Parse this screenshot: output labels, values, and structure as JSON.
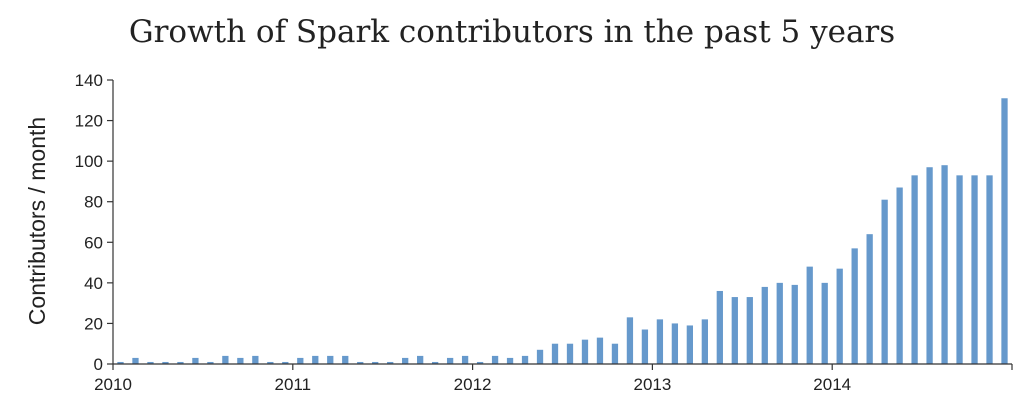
{
  "colors": {
    "bar": "#6699cc",
    "axis": "#333333",
    "text": "#222222"
  },
  "chart_data": {
    "type": "bar",
    "title": "Growth of Spark contributors in the past 5 years",
    "xlabel": "",
    "ylabel": "Contributors / month",
    "ylim": [
      0,
      140
    ],
    "yticks": [
      0,
      20,
      40,
      60,
      80,
      100,
      120,
      140
    ],
    "xticks": [
      {
        "label": "2010",
        "month_index": 0
      },
      {
        "label": "2011",
        "month_index": 12
      },
      {
        "label": "2012",
        "month_index": 24
      },
      {
        "label": "2013",
        "month_index": 36
      },
      {
        "label": "2014",
        "month_index": 48
      }
    ],
    "total_months": 60,
    "grid": false,
    "series": [
      {
        "name": "Contributors / month",
        "values": [
          1,
          3,
          1,
          1,
          1,
          3,
          1,
          4,
          3,
          4,
          1,
          1,
          3,
          4,
          4,
          4,
          1,
          1,
          1,
          3,
          4,
          1,
          3,
          4,
          1,
          4,
          3,
          4,
          7,
          10,
          10,
          12,
          13,
          10,
          23,
          17,
          22,
          20,
          19,
          22,
          36,
          33,
          33,
          38,
          40,
          39,
          48,
          40,
          47,
          57,
          64,
          81,
          87,
          93,
          97,
          98,
          93,
          93,
          93,
          131
        ]
      }
    ]
  }
}
